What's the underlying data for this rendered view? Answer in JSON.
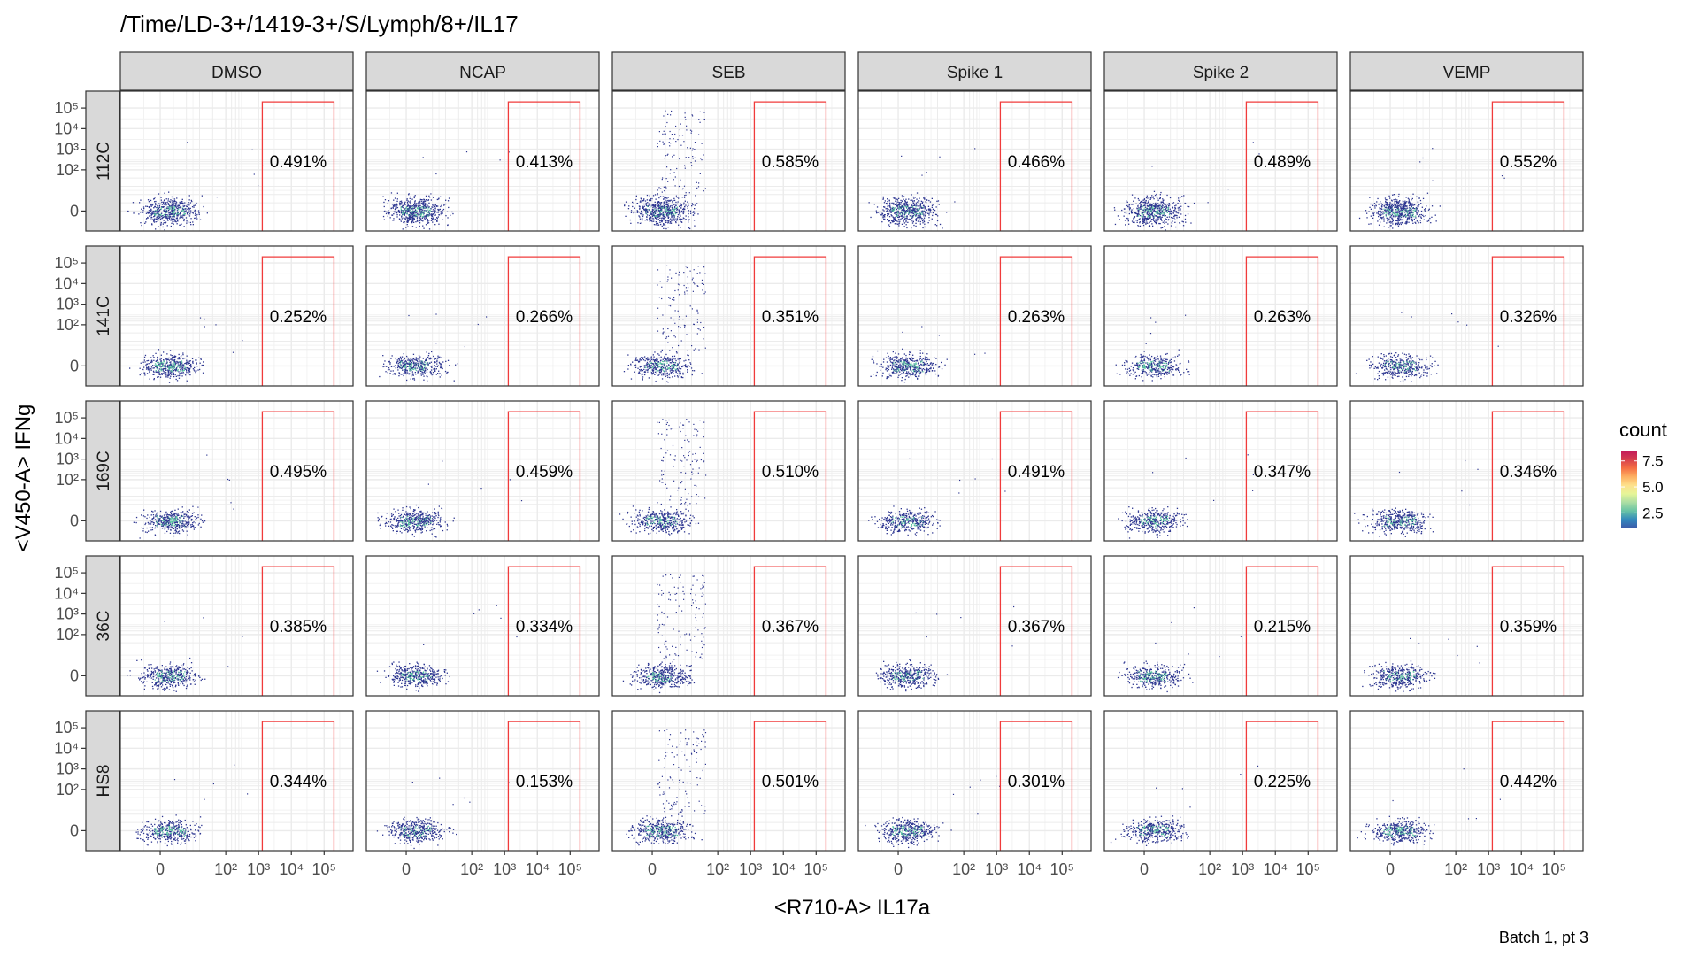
{
  "chart_data": {
    "type": "scatter",
    "title": "/Time/LD-3+/1419-3+/S/Lymph/8+/IL17",
    "xlabel": "<R710-A> IL17a",
    "ylabel": "<V450-A> IFNg",
    "caption": "Batch 1, pt 3",
    "columns": [
      "DMSO",
      "NCAP",
      "SEB",
      "Spike 1",
      "Spike 2",
      "VEMP"
    ],
    "rows": [
      "112C",
      "141C",
      "169C",
      "36C",
      "HS8"
    ],
    "gate_percent": [
      [
        "0.491%",
        "0.413%",
        "0.585%",
        "0.466%",
        "0.489%",
        "0.552%"
      ],
      [
        "0.252%",
        "0.266%",
        "0.351%",
        "0.263%",
        "0.263%",
        "0.326%"
      ],
      [
        "0.495%",
        "0.459%",
        "0.510%",
        "0.491%",
        "0.347%",
        "0.346%"
      ],
      [
        "0.385%",
        "0.334%",
        "0.367%",
        "0.367%",
        "0.215%",
        "0.359%"
      ],
      [
        "0.344%",
        "0.153%",
        "0.501%",
        "0.301%",
        "0.225%",
        "0.442%"
      ]
    ],
    "x_axis": {
      "ticks": [
        {
          "label": "0",
          "value": 0
        },
        {
          "label": "10²",
          "value": 100
        },
        {
          "label": "10³",
          "value": 1000
        },
        {
          "label": "10⁴",
          "value": 10000
        },
        {
          "label": "10⁵",
          "value": 100000
        }
      ]
    },
    "y_axis": {
      "ticks": [
        {
          "label": "0",
          "value": 0
        },
        {
          "label": "10²",
          "value": 100
        },
        {
          "label": "10³",
          "value": 1000
        },
        {
          "label": "10⁴",
          "value": 10000
        },
        {
          "label": "10⁵",
          "value": 100000
        }
      ]
    },
    "gate": {
      "x_min": 1300,
      "x_max": 200000,
      "y_min": -100,
      "y_max": 200000
    },
    "legend": {
      "title": "count",
      "ticks": [
        "2.5",
        "5.0",
        "7.5"
      ],
      "tick_values": [
        2.5,
        5.0,
        7.5
      ],
      "range": [
        1,
        8.5
      ],
      "placement": "right",
      "colors": [
        "#3d58a8",
        "#3288bd",
        "#66c2a5",
        "#abdda4",
        "#e6f598",
        "#fee08b",
        "#fdae61",
        "#f46d43",
        "#d53e4f",
        "#c2185b"
      ]
    },
    "colors": {
      "strip_fill": "#d9d9d9",
      "gate": "#f03b3b",
      "grid": "#ebebeb",
      "point": "#2c3590",
      "dense": "#58c3a0"
    }
  }
}
